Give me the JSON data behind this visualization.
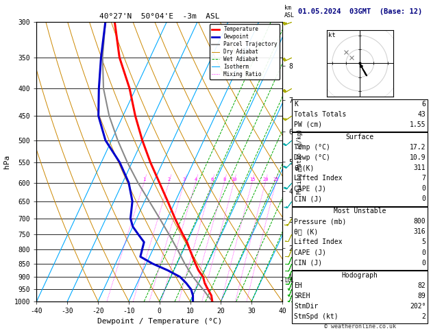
{
  "title_left": "40°27'N  50°04'E  -3m  ASL",
  "title_right": "01.05.2024  03GMT  (Base: 12)",
  "xlabel": "Dewpoint / Temperature (°C)",
  "ylabel_left": "hPa",
  "pressure_levels": [
    300,
    350,
    400,
    450,
    500,
    550,
    600,
    650,
    700,
    750,
    800,
    850,
    900,
    950,
    1000
  ],
  "pressure_min": 300,
  "pressure_max": 1000,
  "temp_min": -40,
  "temp_max": 40,
  "skew_factor": 0.53,
  "temp_profile": {
    "pressure": [
      1000,
      975,
      950,
      925,
      900,
      875,
      850,
      825,
      800,
      775,
      750,
      725,
      700,
      650,
      600,
      550,
      500,
      450,
      400,
      350,
      300
    ],
    "temperature": [
      17.2,
      16.0,
      14.0,
      12.0,
      10.5,
      8.0,
      6.0,
      4.0,
      2.0,
      0.0,
      -2.5,
      -5.0,
      -7.5,
      -12.5,
      -18.0,
      -24.0,
      -30.0,
      -36.0,
      -42.0,
      -50.0,
      -57.0
    ]
  },
  "dewpoint_profile": {
    "pressure": [
      1000,
      975,
      950,
      925,
      900,
      875,
      850,
      825,
      800,
      775,
      750,
      725,
      700,
      650,
      600,
      550,
      500,
      450,
      400,
      350,
      300
    ],
    "dewpoint": [
      10.9,
      10.0,
      8.5,
      6.0,
      3.0,
      -2.0,
      -8.0,
      -13.0,
      -13.5,
      -14.0,
      -17.0,
      -20.0,
      -22.0,
      -24.0,
      -28.0,
      -34.0,
      -42.0,
      -48.0,
      -52.0,
      -56.0,
      -60.0
    ]
  },
  "parcel_profile": {
    "pressure": [
      1000,
      975,
      950,
      925,
      900,
      850,
      800,
      750,
      700,
      650,
      600,
      550,
      500,
      450,
      400,
      350,
      300
    ],
    "temperature": [
      17.2,
      14.8,
      12.4,
      9.8,
      7.2,
      2.5,
      -2.0,
      -7.0,
      -12.5,
      -18.5,
      -25.0,
      -31.5,
      -38.0,
      -44.5,
      -50.5,
      -55.5,
      -60.0
    ]
  },
  "isotherms": [
    -40,
    -30,
    -20,
    -10,
    0,
    10,
    20,
    30,
    40
  ],
  "dry_adiabats_theta": [
    -20,
    -10,
    0,
    10,
    20,
    30,
    40,
    50,
    60,
    70,
    80
  ],
  "wet_adiabats_base": [
    -5,
    0,
    5,
    10,
    15,
    20,
    25,
    30
  ],
  "mixing_ratios": [
    1,
    2,
    3,
    4,
    6,
    8,
    10,
    15,
    20,
    25
  ],
  "km_ticks": [
    1,
    2,
    3,
    4,
    5,
    6,
    7,
    8
  ],
  "km_pressures": [
    899,
    795,
    705,
    622,
    548,
    481,
    420,
    363
  ],
  "lcl_pressure": 915,
  "temp_color": "#ff0000",
  "dewpoint_color": "#0000cc",
  "parcel_color": "#888888",
  "isotherm_color": "#00aaff",
  "dry_adiabat_color": "#cc8800",
  "wet_adiabat_color": "#00aa00",
  "mixing_ratio_color": "#ff00ff",
  "sounding_data": {
    "K": 6,
    "Totals_Totals": 43,
    "PW_cm": 1.55,
    "Surface_Temp": 17.2,
    "Surface_Dewp": 10.9,
    "Surface_theta_e": 311,
    "Surface_LiftedIndex": 7,
    "Surface_CAPE": 0,
    "Surface_CIN": 0,
    "MU_Pressure": 800,
    "MU_theta_e": 316,
    "MU_LiftedIndex": 5,
    "MU_CAPE": 0,
    "MU_CIN": 0,
    "EH": 82,
    "SREH": 89,
    "StmDir": 202,
    "StmSpd": 2
  },
  "hodograph_u": [
    0.0,
    1.0,
    2.0,
    2.5,
    2.0,
    1.5,
    1.0,
    0.5
  ],
  "hodograph_v": [
    0.0,
    -2.0,
    -3.5,
    -4.5,
    -4.0,
    -3.0,
    -2.0,
    -1.0
  ],
  "hodograph_gray_u": [
    -3.0,
    -5.0
  ],
  "hodograph_gray_v": [
    2.0,
    4.0
  ],
  "wind_pressures": [
    1000,
    975,
    950,
    925,
    900,
    875,
    850,
    825,
    800,
    750,
    700,
    650,
    600,
    550,
    500,
    450,
    400,
    350,
    300
  ],
  "wind_speeds": [
    5,
    5,
    5,
    5,
    8,
    8,
    10,
    10,
    10,
    12,
    15,
    15,
    18,
    20,
    22,
    25,
    28,
    32,
    35
  ],
  "wind_dirs": [
    200,
    200,
    200,
    200,
    200,
    202,
    202,
    202,
    202,
    205,
    210,
    215,
    220,
    225,
    230,
    235,
    240,
    245,
    250
  ],
  "wind_colors": [
    "#00aa00",
    "#00aa00",
    "#00aa00",
    "#00aa00",
    "#00aa00",
    "#00aa00",
    "#00aa00",
    "#00aa00",
    "#aaaa00",
    "#aaaa00",
    "#aaaa00",
    "#00aaaa",
    "#00aaaa",
    "#00aaaa",
    "#00aaaa",
    "#aaaa00",
    "#aaaa00",
    "#aaaa00",
    "#aaaa00"
  ],
  "copyright": "© weatheronline.co.uk"
}
